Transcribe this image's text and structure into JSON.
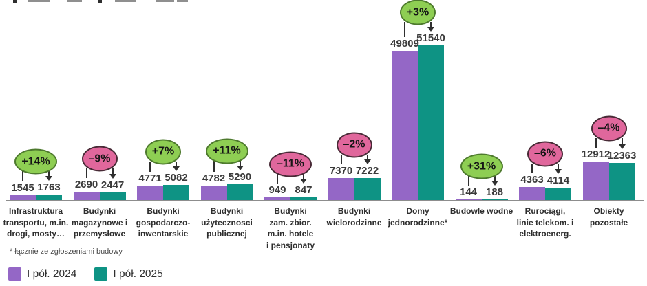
{
  "chart_data": {
    "type": "bar",
    "title_note": "",
    "categories": [
      "Infrastruktura transportu, m.in. drogi, mosty…",
      "Budynki magazynowe i przemysłowe",
      "Budynki gospodarczo-inwentarskie",
      "Budynki użytecznosci publicznej",
      "Budynki zam. zbior. m.in. hotele i pensjonaty",
      "Budynki wielorodzinne",
      "Domy jednorodzinne*",
      "Budowle wodne",
      "Rurociągi, linie telekom. i elektroenerg.",
      "Obiekty pozostałe"
    ],
    "category_labels": [
      "Infrastruktura\ntransportu, m.in.\ndrogi, mosty…",
      "Budynki\nmagazynowe i\nprzemysłowe",
      "Budynki\ngospodarczo-\ninwentarskie",
      "Budynki\nużytecznosci\npublicznej",
      "Budynki\nzam. zbior.\nm.in. hotele\ni pensjonaty",
      "Budynki\nwielorodzinne",
      "Domy\njednorodzinne*",
      "Budowle wodne",
      "Rurociągi,\nlinie telekom. i\nelektroenerg.",
      "Obiekty\npozostałe"
    ],
    "series": [
      {
        "name": "I pół. 2024",
        "color": "#9467C6",
        "values": [
          1545,
          2690,
          4771,
          4782,
          949,
          7370,
          49809,
          144,
          4363,
          12912
        ]
      },
      {
        "name": "I pół. 2025",
        "color": "#0E9384",
        "values": [
          1763,
          2447,
          5082,
          5290,
          847,
          7222,
          51540,
          188,
          4114,
          12363
        ]
      }
    ],
    "pct_change_badges": [
      "+14%",
      "–9%",
      "+7%",
      "+11%",
      "–11%",
      "–2%",
      "+3%",
      "+31%",
      "–6%",
      "–4%"
    ],
    "badge_style": {
      "positive_fill": "#8ECE53",
      "positive_border": "#4E7A2E",
      "negative_fill": "#E0679C",
      "negative_border": "#482A36",
      "text_color": "#161616"
    },
    "footnote": "* łącznie ze zgłoszeniami budowy",
    "legend_position": "bottom-left",
    "value_labels_visible": true,
    "axes": {
      "y_axis_visible": false,
      "gridlines": false,
      "baseline_color": "#8D8D8D"
    },
    "ylim": [
      0,
      51540
    ]
  }
}
